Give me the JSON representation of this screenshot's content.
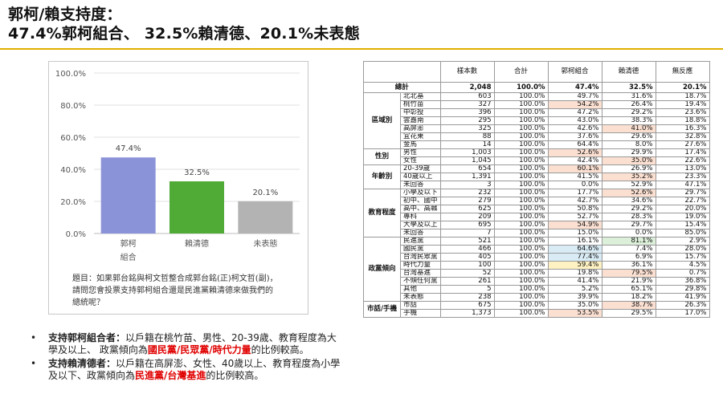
{
  "title": {
    "line1": "郭柯/賴支持度：",
    "line2": "47.4%郭柯組合、 32.5%賴清德、20.1%未表態"
  },
  "chart_data": {
    "type": "bar",
    "categories": [
      "郭柯組合",
      "賴清德",
      "未表態"
    ],
    "category_lines": [
      [
        "郭柯",
        "組合"
      ],
      [
        "賴清德"
      ],
      [
        "未表態"
      ]
    ],
    "values": [
      47.4,
      32.5,
      20.1
    ],
    "value_labels": [
      "47.4%",
      "32.5%",
      "20.1%"
    ],
    "colors": [
      "#8b93d8",
      "#4fab36",
      "#b3b3b3"
    ],
    "ylim": [
      0,
      100
    ],
    "yticks": [
      0,
      20,
      40,
      60,
      80,
      100
    ],
    "ytick_labels": [
      "0.0%",
      "20.0%",
      "40.0%",
      "60.0%",
      "80.0%",
      "100.0%"
    ],
    "grid": true
  },
  "question": {
    "line1": "題目：如果郭台銘與柯文哲整合成郭台銘(正)柯文哲(副)，",
    "line2": "請問您會投票支持郭柯組合還是民進黨賴清德來做我們的",
    "line3": "總統呢？"
  },
  "bullets": [
    {
      "dot": "•",
      "lead": "支持郭柯組合者：",
      "pre": "以戶籍在桃竹苗、男性、20-39歲、教育程度為大學及以上、 政黨傾向為",
      "highlight": "國民黨/民眾黨/時代力量",
      "post": "的比例較高。"
    },
    {
      "dot": "•",
      "lead": "支持賴清德者：",
      "pre": "以戶籍在高屏澎、女性、40歲以上、教育程度為小學及以下、政黨傾向為",
      "highlight": "民進黨/台灣基進",
      "post": "的比例較高。"
    }
  ],
  "table": {
    "headers": [
      "",
      "",
      "樣本數",
      "合計",
      "郭柯組合",
      "賴清德",
      "無反應"
    ],
    "total": {
      "label": "總計",
      "cells": [
        "2,048",
        "100.0%",
        "47.4%",
        "32.5%",
        "20.1%"
      ]
    },
    "groups": [
      {
        "name": "區域別",
        "rows": [
          {
            "label": "北北基",
            "cells": [
              "603",
              "100.0%",
              "49.7%",
              "31.6%",
              "18.7%"
            ],
            "hl": {}
          },
          {
            "label": "桃竹苗",
            "cells": [
              "327",
              "100.0%",
              "54.2%",
              "26.4%",
              "19.4%"
            ],
            "hl": {
              "2": "orange"
            }
          },
          {
            "label": "中彰投",
            "cells": [
              "396",
              "100.0%",
              "47.2%",
              "29.2%",
              "23.6%"
            ],
            "hl": {}
          },
          {
            "label": "雲嘉南",
            "cells": [
              "295",
              "100.0%",
              "43.0%",
              "38.3%",
              "18.8%"
            ],
            "hl": {}
          },
          {
            "label": "高屏澎",
            "cells": [
              "325",
              "100.0%",
              "42.6%",
              "41.0%",
              "16.3%"
            ],
            "hl": {
              "3": "orange"
            }
          },
          {
            "label": "宜花東",
            "cells": [
              "88",
              "100.0%",
              "37.6%",
              "29.6%",
              "32.8%"
            ],
            "hl": {}
          },
          {
            "label": "金馬",
            "cells": [
              "14",
              "100.0%",
              "64.4%",
              "8.0%",
              "27.6%"
            ],
            "hl": {}
          }
        ]
      },
      {
        "name": "性別",
        "rows": [
          {
            "label": "男性",
            "cells": [
              "1,003",
              "100.0%",
              "52.6%",
              "29.9%",
              "17.4%"
            ],
            "hl": {
              "2": "orange"
            }
          },
          {
            "label": "女性",
            "cells": [
              "1,045",
              "100.0%",
              "42.4%",
              "35.0%",
              "22.6%"
            ],
            "hl": {
              "3": "orange"
            }
          }
        ]
      },
      {
        "name": "年齡別",
        "rows": [
          {
            "label": "20-39歲",
            "cells": [
              "654",
              "100.0%",
              "60.1%",
              "26.9%",
              "13.0%"
            ],
            "hl": {
              "2": "orange"
            }
          },
          {
            "label": "40歲以上",
            "cells": [
              "1,391",
              "100.0%",
              "41.5%",
              "35.2%",
              "23.3%"
            ],
            "hl": {
              "3": "orange"
            }
          },
          {
            "label": "未回答",
            "cells": [
              "3",
              "100.0%",
              "0.0%",
              "52.9%",
              "47.1%"
            ],
            "hl": {}
          }
        ]
      },
      {
        "name": "教育程度",
        "rows": [
          {
            "label": "小學及以下",
            "cells": [
              "232",
              "100.0%",
              "17.7%",
              "52.6%",
              "29.7%"
            ],
            "hl": {
              "3": "orange"
            }
          },
          {
            "label": "初中、國中",
            "cells": [
              "279",
              "100.0%",
              "42.7%",
              "34.6%",
              "22.7%"
            ],
            "hl": {}
          },
          {
            "label": "高中、高職",
            "cells": [
              "625",
              "100.0%",
              "50.8%",
              "29.2%",
              "20.0%"
            ],
            "hl": {}
          },
          {
            "label": "專科",
            "cells": [
              "209",
              "100.0%",
              "52.7%",
              "28.3%",
              "19.0%"
            ],
            "hl": {}
          },
          {
            "label": "大學及以上",
            "cells": [
              "695",
              "100.0%",
              "54.9%",
              "29.7%",
              "15.4%"
            ],
            "hl": {
              "2": "orange"
            }
          },
          {
            "label": "未回答",
            "cells": [
              "7",
              "100.0%",
              "15.0%",
              "0.0%",
              "85.0%"
            ],
            "hl": {}
          }
        ]
      },
      {
        "name": "政黨傾向",
        "rows": [
          {
            "label": "民進黨",
            "cells": [
              "521",
              "100.0%",
              "16.1%",
              "81.1%",
              "2.9%"
            ],
            "hl": {
              "3": "green"
            }
          },
          {
            "label": "國民黨",
            "cells": [
              "466",
              "100.0%",
              "64.6%",
              "7.4%",
              "28.0%"
            ],
            "hl": {
              "2": "blue"
            }
          },
          {
            "label": "台灣民眾黨",
            "cells": [
              "405",
              "100.0%",
              "77.4%",
              "6.9%",
              "15.7%"
            ],
            "hl": {
              "2": "blue"
            }
          },
          {
            "label": "時代力量",
            "cells": [
              "100",
              "100.0%",
              "59.4%",
              "36.1%",
              "4.5%"
            ],
            "hl": {
              "2": "yellow"
            }
          },
          {
            "label": "台灣基進",
            "cells": [
              "52",
              "100.0%",
              "19.8%",
              "79.5%",
              "0.7%"
            ],
            "hl": {
              "3": "orange"
            }
          },
          {
            "label": "不傾任何黨",
            "cells": [
              "261",
              "100.0%",
              "41.4%",
              "21.9%",
              "36.8%"
            ],
            "hl": {}
          },
          {
            "label": "其他",
            "cells": [
              "5",
              "100.0%",
              "5.2%",
              "65.1%",
              "29.8%"
            ],
            "hl": {}
          },
          {
            "label": "未表態",
            "cells": [
              "238",
              "100.0%",
              "39.9%",
              "18.2%",
              "41.9%"
            ],
            "hl": {}
          }
        ]
      },
      {
        "name": "市話/手機",
        "rows": [
          {
            "label": "市話",
            "cells": [
              "675",
              "100.0%",
              "35.0%",
              "38.7%",
              "26.3%"
            ],
            "hl": {
              "3": "orange"
            }
          },
          {
            "label": "手機",
            "cells": [
              "1,373",
              "100.0%",
              "53.5%",
              "29.5%",
              "17.0%"
            ],
            "hl": {
              "2": "orange"
            }
          }
        ]
      }
    ]
  }
}
